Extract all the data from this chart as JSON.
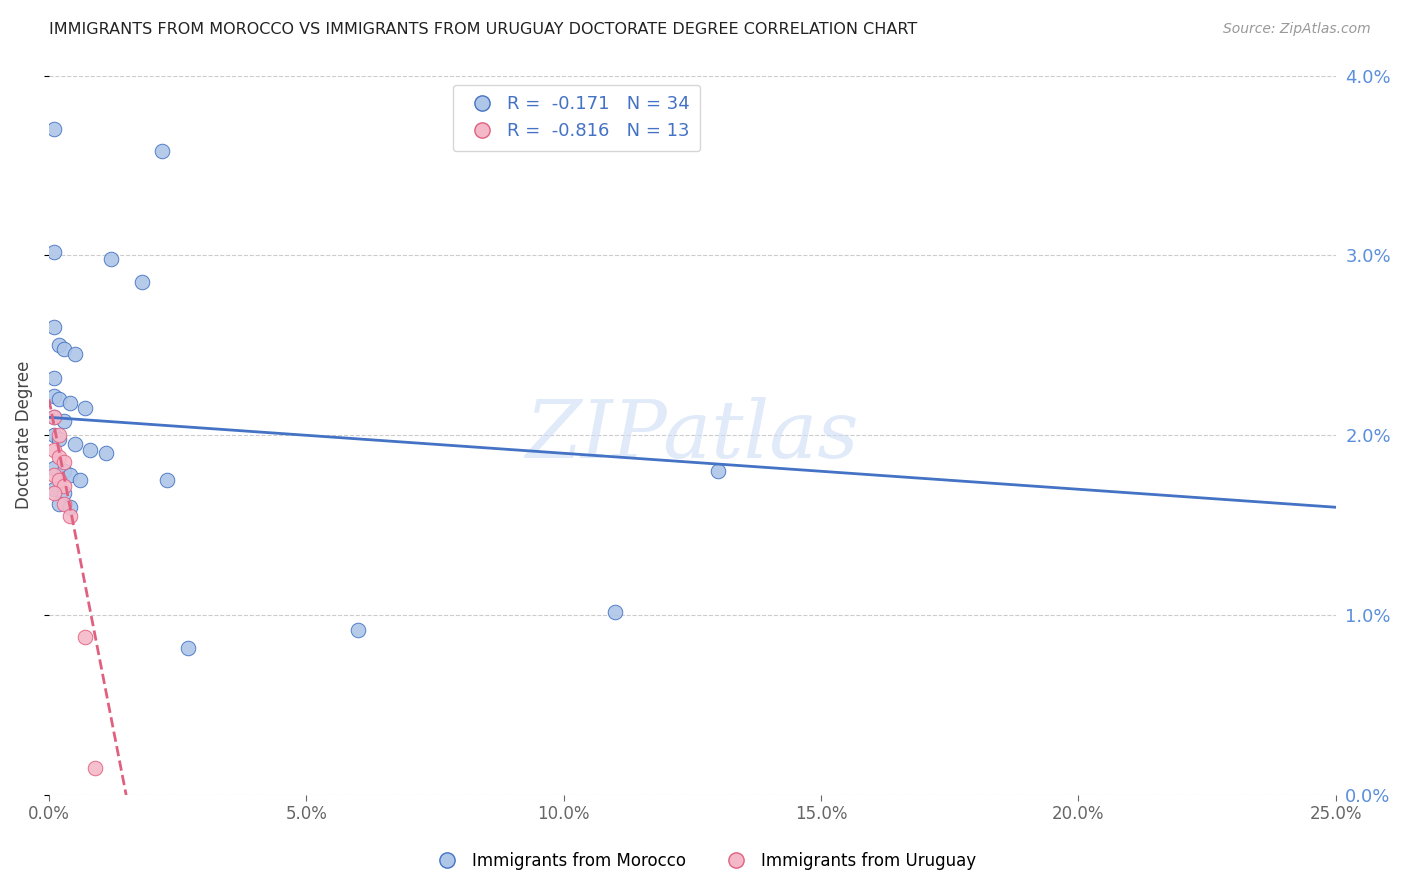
{
  "title": "IMMIGRANTS FROM MOROCCO VS IMMIGRANTS FROM URUGUAY DOCTORATE DEGREE CORRELATION CHART",
  "source": "Source: ZipAtlas.com",
  "ylabel": "Doctorate Degree",
  "xlim": [
    0,
    0.25
  ],
  "ylim": [
    0,
    0.04
  ],
  "xticks": [
    0.0,
    0.05,
    0.1,
    0.15,
    0.2,
    0.25
  ],
  "yticks": [
    0.0,
    0.01,
    0.02,
    0.03,
    0.04
  ],
  "morocco_color": "#aec6e8",
  "uruguay_color": "#f5b8c8",
  "morocco_line_color": "#4472c4",
  "uruguay_line_color": "#e06080",
  "morocco_R": -0.171,
  "morocco_N": 34,
  "uruguay_R": -0.816,
  "uruguay_N": 13,
  "morocco_line": [
    0.0,
    0.021,
    0.25,
    0.016
  ],
  "uruguay_line": [
    0.0,
    0.022,
    0.015,
    0.0
  ],
  "morocco_scatter": [
    [
      0.001,
      0.037
    ],
    [
      0.022,
      0.0358
    ],
    [
      0.001,
      0.0302
    ],
    [
      0.012,
      0.0298
    ],
    [
      0.018,
      0.0285
    ],
    [
      0.001,
      0.026
    ],
    [
      0.002,
      0.025
    ],
    [
      0.003,
      0.0248
    ],
    [
      0.005,
      0.0245
    ],
    [
      0.001,
      0.0232
    ],
    [
      0.001,
      0.0222
    ],
    [
      0.002,
      0.022
    ],
    [
      0.004,
      0.0218
    ],
    [
      0.007,
      0.0215
    ],
    [
      0.001,
      0.021
    ],
    [
      0.003,
      0.0208
    ],
    [
      0.001,
      0.02
    ],
    [
      0.002,
      0.0198
    ],
    [
      0.005,
      0.0195
    ],
    [
      0.008,
      0.0192
    ],
    [
      0.011,
      0.019
    ],
    [
      0.001,
      0.0182
    ],
    [
      0.003,
      0.018
    ],
    [
      0.004,
      0.0178
    ],
    [
      0.006,
      0.0175
    ],
    [
      0.001,
      0.017
    ],
    [
      0.003,
      0.0168
    ],
    [
      0.002,
      0.0162
    ],
    [
      0.004,
      0.016
    ],
    [
      0.023,
      0.0175
    ],
    [
      0.13,
      0.018
    ],
    [
      0.11,
      0.0102
    ],
    [
      0.06,
      0.0092
    ],
    [
      0.027,
      0.0082
    ]
  ],
  "uruguay_scatter": [
    [
      0.001,
      0.021
    ],
    [
      0.002,
      0.02
    ],
    [
      0.001,
      0.0192
    ],
    [
      0.002,
      0.0188
    ],
    [
      0.003,
      0.0185
    ],
    [
      0.001,
      0.0178
    ],
    [
      0.002,
      0.0175
    ],
    [
      0.003,
      0.0172
    ],
    [
      0.001,
      0.0168
    ],
    [
      0.003,
      0.0162
    ],
    [
      0.004,
      0.0155
    ],
    [
      0.007,
      0.0088
    ],
    [
      0.009,
      0.0015
    ]
  ]
}
